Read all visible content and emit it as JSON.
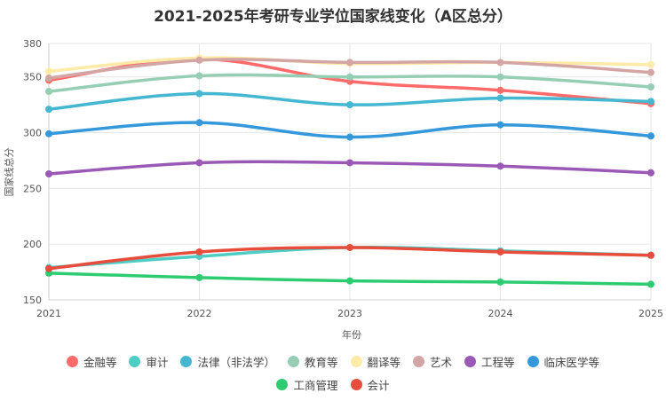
{
  "chart_data": {
    "type": "line",
    "title": "2021-2025年考研专业学位国家线变化（A区总分）",
    "xlabel": "年份",
    "ylabel": "国家线总分",
    "x": [
      "2021",
      "2022",
      "2023",
      "2024",
      "2025"
    ],
    "ylim": [
      150,
      380
    ],
    "yticks": [
      150,
      200,
      250,
      300,
      350,
      380
    ],
    "grid": true,
    "legend_position": "bottom",
    "series": [
      {
        "name": "金融等",
        "color": "#ff6b6b",
        "values": [
          347,
          366,
          346,
          338,
          326
        ]
      },
      {
        "name": "审计",
        "color": "#4ecdc4",
        "values": [
          179,
          189,
          197,
          194,
          190
        ]
      },
      {
        "name": "法律（非法学）",
        "color": "#45b7d1",
        "values": [
          321,
          335,
          325,
          331,
          328
        ]
      },
      {
        "name": "教育等",
        "color": "#96ceb4",
        "values": [
          337,
          351,
          350,
          350,
          341
        ]
      },
      {
        "name": "翻译等",
        "color": "#ffeaa7",
        "values": [
          355,
          367,
          362,
          363,
          361
        ]
      },
      {
        "name": "艺术",
        "color": "#d4a5a5",
        "values": [
          349,
          365,
          363,
          363,
          354
        ]
      },
      {
        "name": "工程等",
        "color": "#9b59b6",
        "values": [
          263,
          273,
          273,
          270,
          264
        ]
      },
      {
        "name": "临床医学等",
        "color": "#3498db",
        "values": [
          299,
          309,
          296,
          307,
          297
        ]
      },
      {
        "name": "工商管理",
        "color": "#2ecc71",
        "values": [
          174,
          170,
          167,
          166,
          164
        ]
      },
      {
        "name": "会计",
        "color": "#e74c3c",
        "values": [
          178,
          193,
          197,
          193,
          190
        ]
      }
    ]
  }
}
